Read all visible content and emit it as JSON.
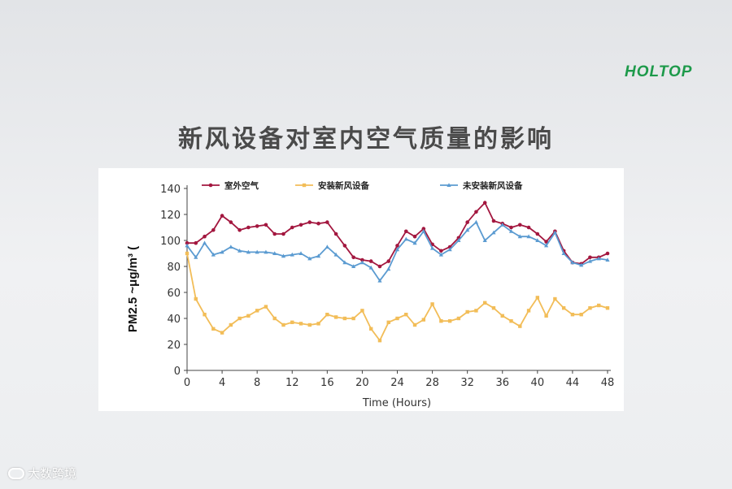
{
  "brand": {
    "logo_text": "HOLTOP",
    "watermark": "大数跨境"
  },
  "slide": {
    "title": "新风设备对室内空气质量的影响"
  },
  "colors": {
    "outdoor": "#a3173f",
    "with_device": "#f2bd58",
    "without_device": "#5b9bd1",
    "logo": "#1d9a4a"
  },
  "chart_data": {
    "type": "line",
    "title": "",
    "xlabel": "Time (Hours)",
    "ylabel": "PM2.5 ~μg/m³ (",
    "xlim": [
      0,
      48
    ],
    "ylim": [
      0,
      140
    ],
    "x_ticks": [
      0,
      4,
      8,
      12,
      16,
      20,
      24,
      28,
      32,
      36,
      40,
      44,
      48
    ],
    "y_ticks": [
      0,
      20,
      40,
      60,
      80,
      100,
      120,
      140
    ],
    "legend_position": "top",
    "x": [
      0,
      1,
      2,
      3,
      4,
      5,
      6,
      7,
      8,
      9,
      10,
      11,
      12,
      13,
      14,
      15,
      16,
      17,
      18,
      19,
      20,
      21,
      22,
      23,
      24,
      25,
      26,
      27,
      28,
      29,
      30,
      31,
      32,
      33,
      34,
      35,
      36,
      37,
      38,
      39,
      40,
      41,
      42,
      43,
      44,
      45,
      46,
      47,
      48
    ],
    "series": [
      {
        "name": "室外空气",
        "color": "#a3173f",
        "values": [
          98,
          98,
          103,
          108,
          119,
          114,
          108,
          110,
          111,
          112,
          105,
          105,
          110,
          112,
          114,
          113,
          114,
          105,
          96,
          87,
          85,
          84,
          80,
          84,
          96,
          107,
          103,
          109,
          97,
          92,
          95,
          102,
          114,
          122,
          129,
          115,
          113,
          110,
          112,
          110,
          105,
          99,
          107,
          92,
          83,
          82,
          87,
          87,
          90
        ]
      },
      {
        "name": "安装新风设备",
        "color": "#f2bd58",
        "values": [
          90,
          55,
          43,
          32,
          29,
          35,
          40,
          42,
          46,
          49,
          40,
          35,
          37,
          36,
          35,
          36,
          43,
          41,
          40,
          40,
          46,
          32,
          23,
          37,
          40,
          43,
          35,
          39,
          51,
          38,
          38,
          40,
          45,
          46,
          52,
          48,
          42,
          38,
          34,
          46,
          56,
          42,
          55,
          48,
          43,
          43,
          48,
          50,
          48
        ]
      },
      {
        "name": "未安装新风设备",
        "color": "#5b9bd1",
        "values": [
          96,
          87,
          98,
          89,
          91,
          95,
          92,
          91,
          91,
          91,
          90,
          88,
          89,
          90,
          86,
          88,
          95,
          89,
          83,
          80,
          83,
          79,
          69,
          78,
          93,
          101,
          98,
          107,
          94,
          89,
          93,
          100,
          108,
          114,
          100,
          106,
          112,
          107,
          103,
          103,
          100,
          96,
          106,
          90,
          83,
          81,
          84,
          86,
          85
        ]
      }
    ]
  }
}
